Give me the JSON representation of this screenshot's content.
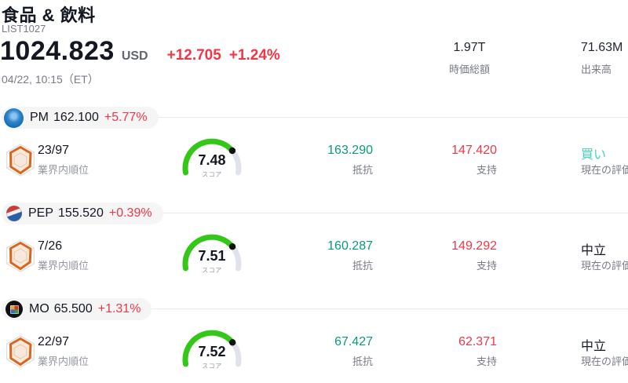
{
  "header": {
    "title": "食品 & 飲料",
    "subtitle": "LIST1027",
    "price": "1024.823",
    "currency": "USD",
    "change_abs": "+12.705",
    "change_pct": "+1.24%",
    "datetime": "04/22, 10:15（ET）",
    "stats": [
      {
        "value": "1.97T",
        "label": "時価総額"
      },
      {
        "value": "71.63M",
        "label": "出来高"
      }
    ]
  },
  "labels": {
    "rank": "業界内順位",
    "score": "スコア",
    "resistance": "抵抗",
    "support": "支持",
    "rating": "現在の評価"
  },
  "colors": {
    "up_red": "#f23645",
    "resistance_teal": "#089981",
    "support_red": "#f23645",
    "buy_cyan": "#47d1bd",
    "neutral_text": "#131722",
    "gauge_green": "#33c818",
    "gauge_track": "#e0e3eb"
  },
  "sections": [
    {
      "symbol": "PM",
      "price": "162.100",
      "change": "+5.77%",
      "rank": "23/97",
      "score": 7.48,
      "score_max": 10,
      "resistance": "163.290",
      "support": "147.420",
      "rating": "買い",
      "rating_color": "#47d1bd"
    },
    {
      "symbol": "PEP",
      "price": "155.520",
      "change": "+0.39%",
      "rank": "7/26",
      "score": 7.51,
      "score_max": 10,
      "resistance": "160.287",
      "support": "149.292",
      "rating": "中立",
      "rating_color": "#131722"
    },
    {
      "symbol": "MO",
      "price": "65.500",
      "change": "+1.31%",
      "rank": "22/97",
      "score": 7.52,
      "score_max": 10,
      "resistance": "67.427",
      "support": "62.371",
      "rating": "中立",
      "rating_color": "#131722"
    }
  ]
}
